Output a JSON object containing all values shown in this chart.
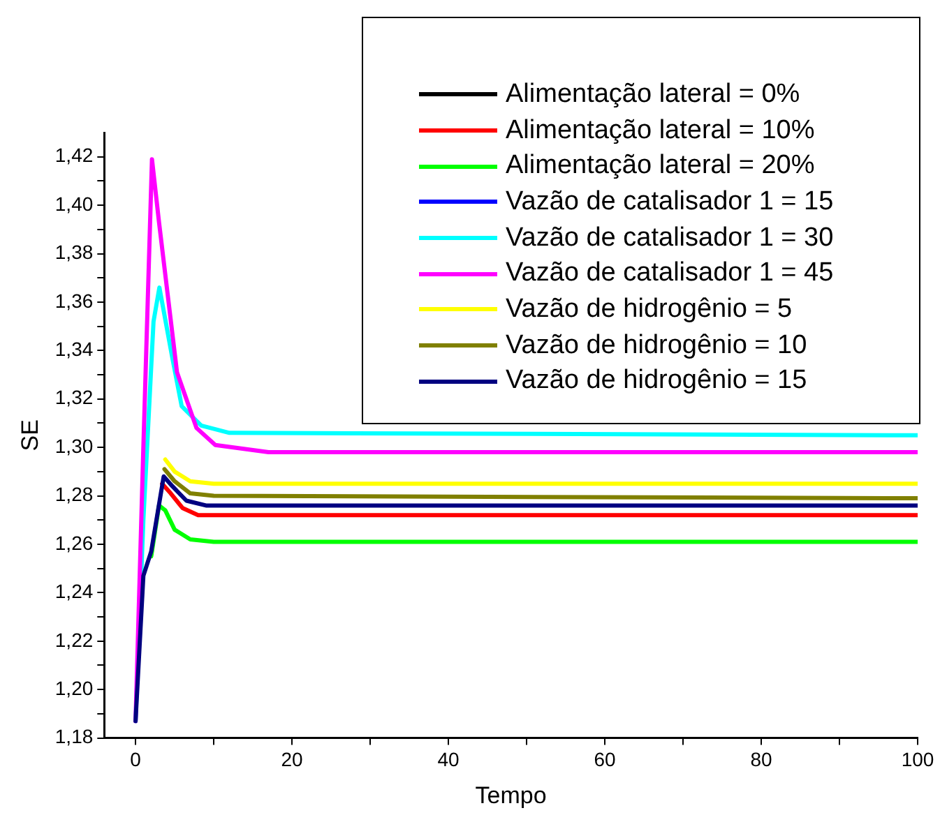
{
  "chart_data": {
    "type": "line",
    "xlabel": "Tempo",
    "ylabel": "SE",
    "xlim": [
      -4,
      100
    ],
    "ylim": [
      1.18,
      1.43
    ],
    "xticks": [
      0,
      {
        "value": 10,
        "label": null
      },
      20,
      {
        "value": 30,
        "label": null
      },
      40,
      {
        "value": 50,
        "label": null
      },
      60,
      {
        "value": 70,
        "label": null
      },
      80,
      {
        "value": 90,
        "label": null
      },
      100
    ],
    "yticks": [
      {
        "value": 1.18,
        "label": "1,18"
      },
      {
        "value": 1.19,
        "label": null
      },
      {
        "value": 1.2,
        "label": "1,20"
      },
      {
        "value": 1.21,
        "label": null
      },
      {
        "value": 1.22,
        "label": "1,22"
      },
      {
        "value": 1.23,
        "label": null
      },
      {
        "value": 1.24,
        "label": "1,24"
      },
      {
        "value": 1.25,
        "label": null
      },
      {
        "value": 1.26,
        "label": "1,26"
      },
      {
        "value": 1.27,
        "label": null
      },
      {
        "value": 1.28,
        "label": "1,28"
      },
      {
        "value": 1.29,
        "label": null
      },
      {
        "value": 1.3,
        "label": "1,30"
      },
      {
        "value": 1.31,
        "label": null
      },
      {
        "value": 1.32,
        "label": "1,32"
      },
      {
        "value": 1.33,
        "label": null
      },
      {
        "value": 1.34,
        "label": "1,34"
      },
      {
        "value": 1.35,
        "label": null
      },
      {
        "value": 1.36,
        "label": "1,36"
      },
      {
        "value": 1.37,
        "label": null
      },
      {
        "value": 1.38,
        "label": "1,38"
      },
      {
        "value": 1.39,
        "label": null
      },
      {
        "value": 1.4,
        "label": "1,40"
      },
      {
        "value": 1.41,
        "label": null
      },
      {
        "value": 1.42,
        "label": "1,42"
      }
    ],
    "legend": "top right",
    "marker": "none",
    "line_style": "solid",
    "series": [
      {
        "name": "Alimentação lateral = 0%",
        "color": "#000000"
      },
      {
        "name": "Alimentação lateral = 10%",
        "color": "#ff0000",
        "x": [
          3.4,
          4.5,
          6,
          8,
          12,
          100
        ],
        "values": [
          1.285,
          1.281,
          1.275,
          1.272,
          1.272,
          1.272
        ]
      },
      {
        "name": "Alimentação lateral = 20%",
        "color": "#00ff00",
        "x": [
          2,
          3,
          3.8,
          5,
          7,
          10,
          100
        ],
        "values": [
          1.255,
          1.276,
          1.274,
          1.266,
          1.262,
          1.261,
          1.261
        ]
      },
      {
        "name": "Vazão de catalisador 1 = 15",
        "color": "#0000ff"
      },
      {
        "name": "Vazão de catalisador 1 = 30",
        "color": "#00ffff",
        "x": [
          0,
          1,
          2.3,
          3.05,
          4.7,
          5.9,
          8.4,
          12,
          100
        ],
        "values": [
          1.187,
          1.27,
          1.352,
          1.366,
          1.337,
          1.317,
          1.309,
          1.306,
          1.305
        ]
      },
      {
        "name": "Vazão de catalisador 1 = 45",
        "color": "#ff00ff",
        "x": [
          0,
          1,
          2.1,
          3,
          5.3,
          7.8,
          10.2,
          17,
          100
        ],
        "values": [
          1.187,
          1.3,
          1.419,
          1.393,
          1.331,
          1.308,
          1.301,
          1.298,
          1.298
        ]
      },
      {
        "name": "Vazão de hidrogênio = 5",
        "color": "#ffff00",
        "x": [
          3.8,
          5,
          7,
          10,
          100
        ],
        "values": [
          1.295,
          1.29,
          1.286,
          1.285,
          1.285
        ]
      },
      {
        "name": "Vazão de hidrogênio = 10",
        "color": "#808000",
        "x": [
          3.7,
          5,
          7,
          10,
          100
        ],
        "values": [
          1.291,
          1.286,
          1.281,
          1.28,
          1.279
        ]
      },
      {
        "name": "Vazão de hidrogênio = 15",
        "color": "#000080",
        "x": [
          0,
          1,
          2,
          3.6,
          4.7,
          6.5,
          9,
          12,
          100
        ],
        "values": [
          1.187,
          1.247,
          1.257,
          1.288,
          1.284,
          1.278,
          1.276,
          1.276,
          1.276
        ]
      }
    ]
  }
}
